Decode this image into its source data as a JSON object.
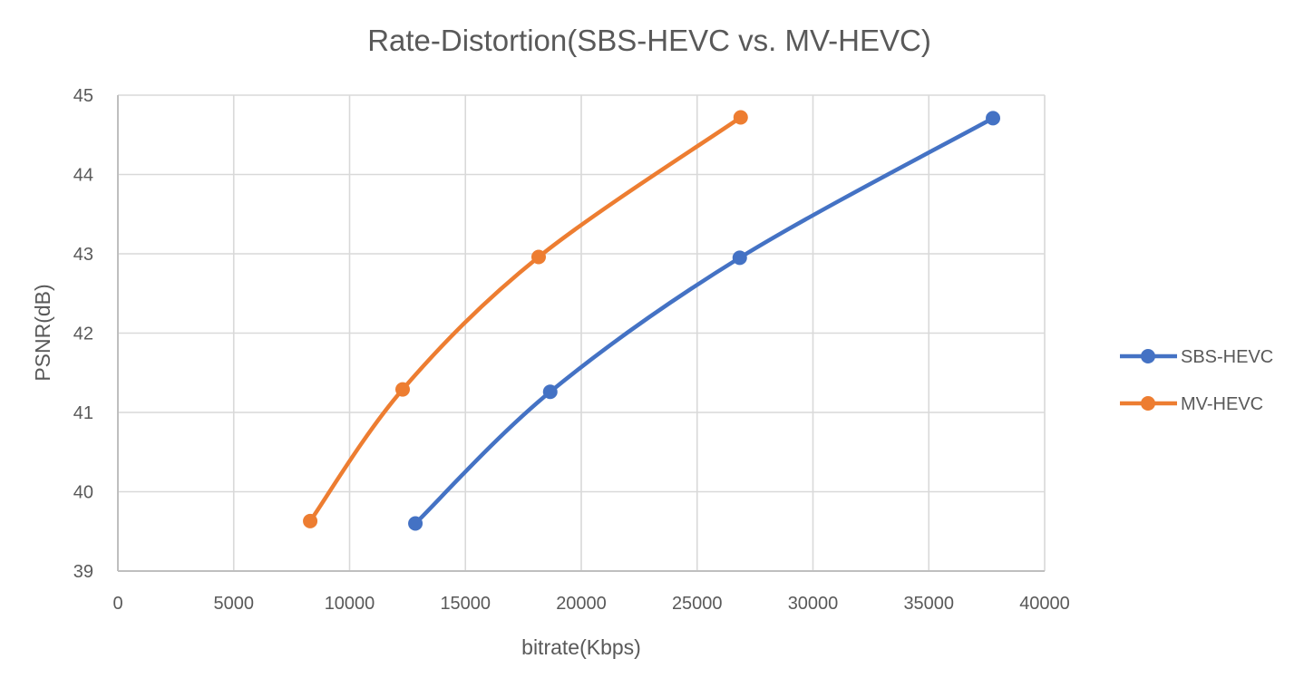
{
  "chart_data": {
    "type": "line",
    "title": "Rate-Distortion(SBS-HEVC vs. MV-HEVC)",
    "xlabel": "bitrate(Kbps)",
    "ylabel": "PSNR(dB)",
    "xlim": [
      0,
      40000
    ],
    "ylim": [
      39,
      45
    ],
    "x_ticks": [
      0,
      5000,
      10000,
      15000,
      20000,
      25000,
      30000,
      35000,
      40000
    ],
    "x_tick_labels": [
      "0",
      "5000",
      "10000",
      "15000",
      "20000",
      "25000",
      "30000",
      "35000",
      "40000"
    ],
    "y_ticks": [
      39,
      40,
      41,
      42,
      43,
      44,
      45
    ],
    "y_tick_labels": [
      "39",
      "40",
      "41",
      "42",
      "43",
      "44",
      "45"
    ],
    "grid": true,
    "smooth": true,
    "markers": true,
    "legend_position": "right",
    "series": [
      {
        "name": "SBS-HEVC",
        "color": "#4472c4",
        "x": [
          12840,
          18660,
          26840,
          37770
        ],
        "y": [
          39.6,
          41.26,
          42.95,
          44.71
        ]
      },
      {
        "name": "MV-HEVC",
        "color": "#ed7d31",
        "x": [
          8300,
          12290,
          18160,
          26880
        ],
        "y": [
          39.63,
          41.29,
          42.96,
          44.72
        ]
      }
    ]
  }
}
